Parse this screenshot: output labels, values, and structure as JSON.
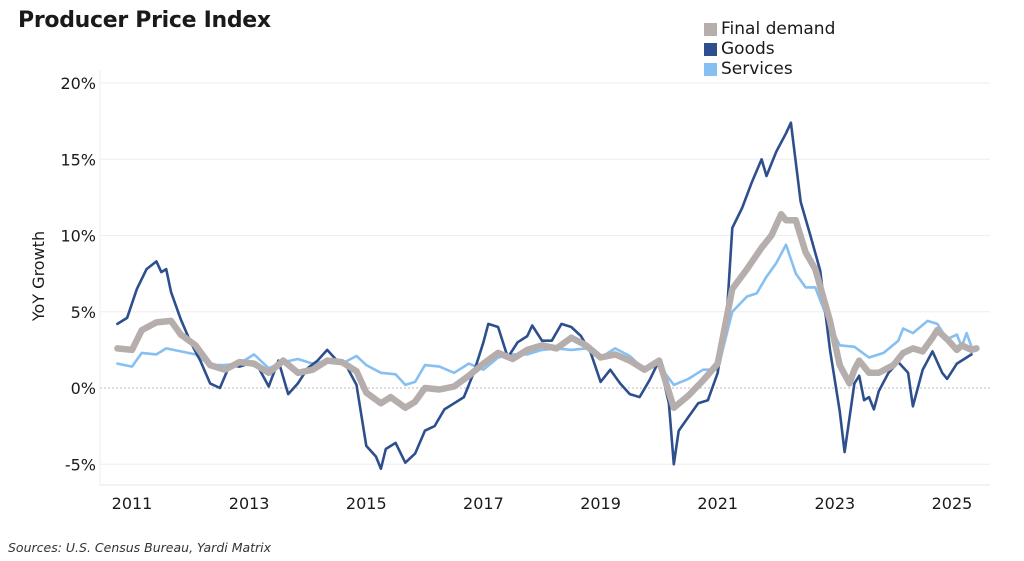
{
  "chart_data": {
    "type": "line",
    "title": "Producer Price Index",
    "ylabel": "YoY Growth",
    "xlabel": "",
    "ylim": [
      -6.5,
      21
    ],
    "yticks": [
      "20%",
      "15%",
      "10%",
      "5%",
      "0%",
      "-5%"
    ],
    "ytick_values": [
      20,
      15,
      10,
      5,
      0,
      -5
    ],
    "xticks": [
      "2011",
      "2013",
      "2015",
      "2017",
      "2019",
      "2021",
      "2023",
      "2025"
    ],
    "grid": true,
    "legend": "top-right",
    "source": "Sources: U.S. Census Bureau, Yardi Matrix",
    "series": [
      {
        "name": "Services",
        "color": "#86c0f2",
        "points": [
          [
            "2010-10",
            1.6
          ],
          [
            "2011-01",
            1.4
          ],
          [
            "2011-03",
            2.3
          ],
          [
            "2011-06",
            2.2
          ],
          [
            "2011-08",
            2.6
          ],
          [
            "2011-11",
            2.4
          ],
          [
            "2012-02",
            2.2
          ],
          [
            "2012-05",
            1.5
          ],
          [
            "2012-08",
            1.5
          ],
          [
            "2012-11",
            1.6
          ],
          [
            "2013-02",
            2.2
          ],
          [
            "2013-05",
            1.3
          ],
          [
            "2013-08",
            1.7
          ],
          [
            "2013-11",
            1.9
          ],
          [
            "2014-02",
            1.6
          ],
          [
            "2014-05",
            1.8
          ],
          [
            "2014-08",
            1.6
          ],
          [
            "2014-11",
            2.1
          ],
          [
            "2015-01",
            1.5
          ],
          [
            "2015-04",
            1.0
          ],
          [
            "2015-07",
            0.9
          ],
          [
            "2015-09",
            0.2
          ],
          [
            "2015-11",
            0.4
          ],
          [
            "2016-01",
            1.5
          ],
          [
            "2016-04",
            1.4
          ],
          [
            "2016-07",
            1.0
          ],
          [
            "2016-10",
            1.6
          ],
          [
            "2017-01",
            1.2
          ],
          [
            "2017-04",
            2.0
          ],
          [
            "2017-07",
            2.2
          ],
          [
            "2017-10",
            2.2
          ],
          [
            "2018-01",
            2.5
          ],
          [
            "2018-04",
            2.6
          ],
          [
            "2018-07",
            2.5
          ],
          [
            "2018-10",
            2.6
          ],
          [
            "2019-01",
            2.0
          ],
          [
            "2019-04",
            2.6
          ],
          [
            "2019-07",
            2.1
          ],
          [
            "2019-10",
            1.2
          ],
          [
            "2020-01",
            1.5
          ],
          [
            "2020-04",
            0.2
          ],
          [
            "2020-07",
            0.6
          ],
          [
            "2020-10",
            1.2
          ],
          [
            "2021-01",
            1.2
          ],
          [
            "2021-04",
            5.0
          ],
          [
            "2021-07",
            6.0
          ],
          [
            "2021-09",
            6.2
          ],
          [
            "2021-11",
            7.3
          ],
          [
            "2022-01",
            8.2
          ],
          [
            "2022-03",
            9.4
          ],
          [
            "2022-05",
            7.5
          ],
          [
            "2022-07",
            6.6
          ],
          [
            "2022-09",
            6.6
          ],
          [
            "2022-12",
            4.1
          ],
          [
            "2023-02",
            2.8
          ],
          [
            "2023-05",
            2.7
          ],
          [
            "2023-08",
            2.0
          ],
          [
            "2023-11",
            2.3
          ],
          [
            "2024-02",
            3.1
          ],
          [
            "2024-03",
            3.9
          ],
          [
            "2024-05",
            3.6
          ],
          [
            "2024-08",
            4.4
          ],
          [
            "2024-10",
            4.2
          ],
          [
            "2024-12",
            3.2
          ],
          [
            "2025-02",
            3.5
          ],
          [
            "2025-03",
            2.7
          ],
          [
            "2025-04",
            3.6
          ],
          [
            "2025-05",
            2.7
          ]
        ]
      },
      {
        "name": "Goods",
        "color": "#2d4f8e",
        "points": [
          [
            "2010-10",
            4.2
          ],
          [
            "2010-12",
            4.6
          ],
          [
            "2011-02",
            6.5
          ],
          [
            "2011-04",
            7.8
          ],
          [
            "2011-06",
            8.3
          ],
          [
            "2011-07",
            7.6
          ],
          [
            "2011-08",
            7.8
          ],
          [
            "2011-09",
            6.3
          ],
          [
            "2011-11",
            4.5
          ],
          [
            "2012-01",
            3.0
          ],
          [
            "2012-03",
            1.8
          ],
          [
            "2012-05",
            0.3
          ],
          [
            "2012-07",
            0.0
          ],
          [
            "2012-09",
            1.5
          ],
          [
            "2012-11",
            1.4
          ],
          [
            "2013-01",
            1.6
          ],
          [
            "2013-03",
            1.3
          ],
          [
            "2013-05",
            0.1
          ],
          [
            "2013-07",
            1.8
          ],
          [
            "2013-09",
            -0.4
          ],
          [
            "2013-11",
            0.3
          ],
          [
            "2014-01",
            1.3
          ],
          [
            "2014-03",
            1.8
          ],
          [
            "2014-05",
            2.5
          ],
          [
            "2014-07",
            1.8
          ],
          [
            "2014-09",
            1.4
          ],
          [
            "2014-11",
            0.2
          ],
          [
            "2015-01",
            -3.8
          ],
          [
            "2015-03",
            -4.5
          ],
          [
            "2015-04",
            -5.3
          ],
          [
            "2015-05",
            -4.0
          ],
          [
            "2015-07",
            -3.6
          ],
          [
            "2015-09",
            -4.9
          ],
          [
            "2015-11",
            -4.3
          ],
          [
            "2016-01",
            -2.8
          ],
          [
            "2016-03",
            -2.5
          ],
          [
            "2016-05",
            -1.4
          ],
          [
            "2016-07",
            -1.0
          ],
          [
            "2016-09",
            -0.6
          ],
          [
            "2016-11",
            1.0
          ],
          [
            "2017-01",
            3.0
          ],
          [
            "2017-02",
            4.2
          ],
          [
            "2017-04",
            4.0
          ],
          [
            "2017-06",
            2.0
          ],
          [
            "2017-08",
            3.0
          ],
          [
            "2017-10",
            3.4
          ],
          [
            "2017-11",
            4.1
          ],
          [
            "2018-01",
            3.1
          ],
          [
            "2018-03",
            3.1
          ],
          [
            "2018-05",
            4.2
          ],
          [
            "2018-07",
            4.0
          ],
          [
            "2018-09",
            3.4
          ],
          [
            "2018-11",
            2.3
          ],
          [
            "2019-01",
            0.4
          ],
          [
            "2019-03",
            1.2
          ],
          [
            "2019-05",
            0.3
          ],
          [
            "2019-07",
            -0.4
          ],
          [
            "2019-09",
            -0.6
          ],
          [
            "2019-11",
            0.5
          ],
          [
            "2020-01",
            1.8
          ],
          [
            "2020-03",
            -1.0
          ],
          [
            "2020-04",
            -5.0
          ],
          [
            "2020-05",
            -2.8
          ],
          [
            "2020-07",
            -1.9
          ],
          [
            "2020-09",
            -1.0
          ],
          [
            "2020-11",
            -0.8
          ],
          [
            "2021-01",
            1.0
          ],
          [
            "2021-03",
            5.5
          ],
          [
            "2021-04",
            10.5
          ],
          [
            "2021-06",
            11.8
          ],
          [
            "2021-08",
            13.5
          ],
          [
            "2021-10",
            15.0
          ],
          [
            "2021-11",
            13.9
          ],
          [
            "2022-01",
            15.5
          ],
          [
            "2022-03",
            16.7
          ],
          [
            "2022-04",
            17.4
          ],
          [
            "2022-06",
            12.2
          ],
          [
            "2022-08",
            10.0
          ],
          [
            "2022-10",
            7.7
          ],
          [
            "2022-12",
            2.5
          ],
          [
            "2023-02",
            -1.5
          ],
          [
            "2023-03",
            -4.2
          ],
          [
            "2023-05",
            0.3
          ],
          [
            "2023-06",
            0.8
          ],
          [
            "2023-07",
            -0.8
          ],
          [
            "2023-08",
            -0.6
          ],
          [
            "2023-09",
            -1.4
          ],
          [
            "2023-10",
            -0.2
          ],
          [
            "2023-12",
            1.0
          ],
          [
            "2024-02",
            1.7
          ],
          [
            "2024-04",
            1.0
          ],
          [
            "2024-05",
            -1.2
          ],
          [
            "2024-07",
            1.2
          ],
          [
            "2024-09",
            2.4
          ],
          [
            "2024-11",
            1.0
          ],
          [
            "2024-12",
            0.6
          ],
          [
            "2025-02",
            1.6
          ],
          [
            "2025-04",
            2.0
          ],
          [
            "2025-05",
            2.2
          ]
        ]
      },
      {
        "name": "Final demand",
        "color": "#b5aeac",
        "points": [
          [
            "2010-10",
            2.6
          ],
          [
            "2011-01",
            2.5
          ],
          [
            "2011-03",
            3.8
          ],
          [
            "2011-06",
            4.3
          ],
          [
            "2011-09",
            4.4
          ],
          [
            "2011-11",
            3.5
          ],
          [
            "2012-02",
            2.8
          ],
          [
            "2012-05",
            1.5
          ],
          [
            "2012-08",
            1.2
          ],
          [
            "2012-11",
            1.7
          ],
          [
            "2013-02",
            1.6
          ],
          [
            "2013-05",
            1.0
          ],
          [
            "2013-08",
            1.8
          ],
          [
            "2013-11",
            1.0
          ],
          [
            "2014-02",
            1.2
          ],
          [
            "2014-05",
            1.8
          ],
          [
            "2014-08",
            1.7
          ],
          [
            "2014-11",
            1.1
          ],
          [
            "2015-01",
            -0.3
          ],
          [
            "2015-04",
            -1.0
          ],
          [
            "2015-06",
            -0.6
          ],
          [
            "2015-09",
            -1.3
          ],
          [
            "2015-11",
            -0.9
          ],
          [
            "2016-01",
            0.0
          ],
          [
            "2016-04",
            -0.1
          ],
          [
            "2016-07",
            0.1
          ],
          [
            "2016-10",
            0.8
          ],
          [
            "2017-01",
            1.6
          ],
          [
            "2017-04",
            2.3
          ],
          [
            "2017-07",
            1.9
          ],
          [
            "2017-10",
            2.5
          ],
          [
            "2018-01",
            2.8
          ],
          [
            "2018-04",
            2.6
          ],
          [
            "2018-07",
            3.3
          ],
          [
            "2018-10",
            2.8
          ],
          [
            "2019-01",
            2.0
          ],
          [
            "2019-04",
            2.2
          ],
          [
            "2019-07",
            1.8
          ],
          [
            "2019-10",
            1.2
          ],
          [
            "2020-01",
            1.8
          ],
          [
            "2020-04",
            -1.3
          ],
          [
            "2020-07",
            -0.5
          ],
          [
            "2020-10",
            0.5
          ],
          [
            "2021-01",
            1.6
          ],
          [
            "2021-04",
            6.5
          ],
          [
            "2021-07",
            7.8
          ],
          [
            "2021-10",
            9.2
          ],
          [
            "2021-12",
            10.0
          ],
          [
            "2022-02",
            11.4
          ],
          [
            "2022-03",
            11.0
          ],
          [
            "2022-05",
            11.0
          ],
          [
            "2022-07",
            8.9
          ],
          [
            "2022-09",
            7.8
          ],
          [
            "2022-12",
            4.4
          ],
          [
            "2023-02",
            1.5
          ],
          [
            "2023-04",
            0.3
          ],
          [
            "2023-05",
            1.2
          ],
          [
            "2023-06",
            1.8
          ],
          [
            "2023-08",
            1.0
          ],
          [
            "2023-10",
            1.0
          ],
          [
            "2024-01",
            1.5
          ],
          [
            "2024-03",
            2.3
          ],
          [
            "2024-05",
            2.6
          ],
          [
            "2024-07",
            2.4
          ],
          [
            "2024-09",
            3.3
          ],
          [
            "2024-10",
            3.8
          ],
          [
            "2024-12",
            3.2
          ],
          [
            "2025-02",
            2.5
          ],
          [
            "2025-03",
            2.8
          ],
          [
            "2025-05",
            2.5
          ],
          [
            "2025-06",
            2.6
          ]
        ]
      }
    ],
    "legend_order": [
      "Final demand",
      "Goods",
      "Services"
    ]
  }
}
